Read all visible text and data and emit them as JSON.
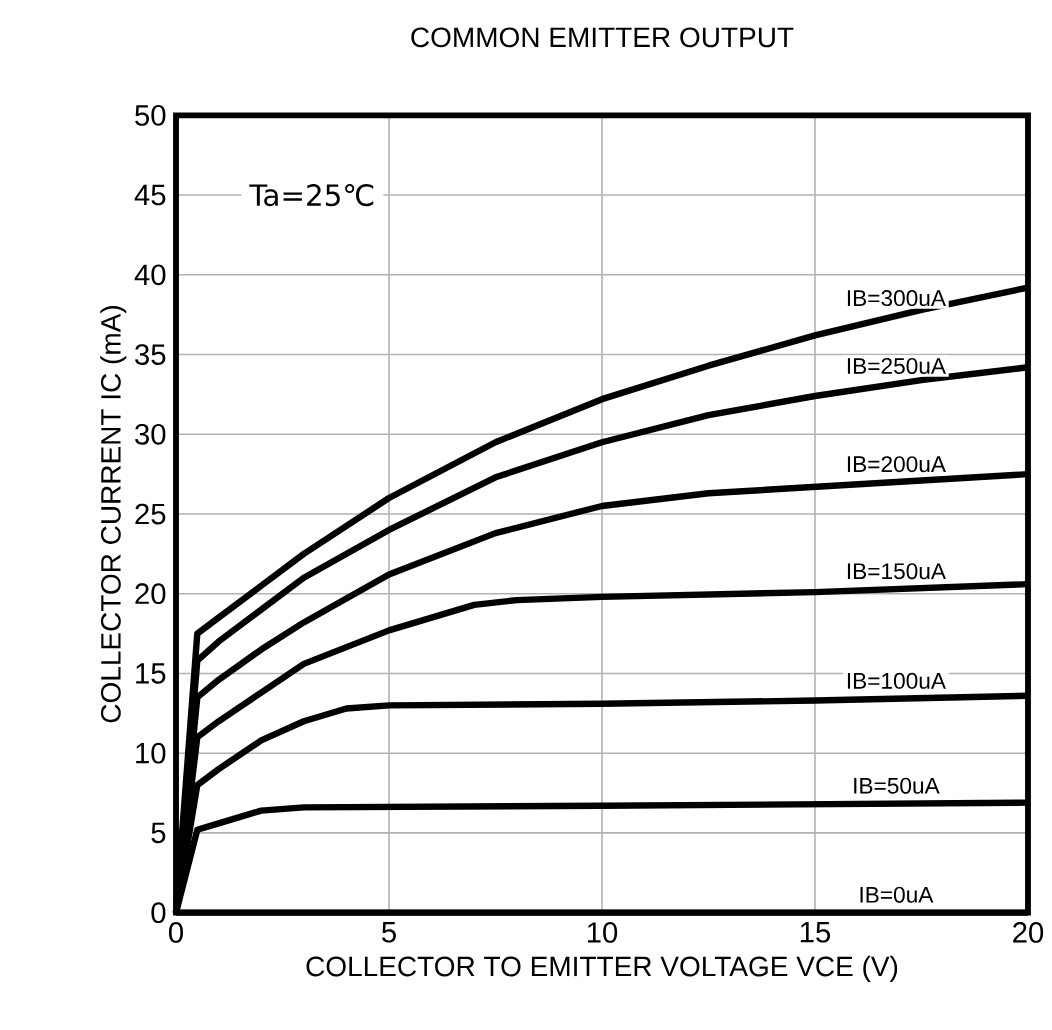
{
  "chart_data": {
    "type": "line",
    "title": "COMMON EMITTER OUTPUT",
    "xlabel": "COLLECTOR TO EMITTER VOLTAGE  VCE (V)",
    "ylabel": "COLLECTOR CURRENT  IC (mA)",
    "annotations": [
      "Ta=25℃"
    ],
    "xlim": [
      0,
      20
    ],
    "ylim": [
      0,
      50
    ],
    "xticks": [
      0,
      5,
      10,
      15,
      20
    ],
    "yticks": [
      0,
      5,
      10,
      15,
      20,
      25,
      30,
      35,
      40,
      45,
      50
    ],
    "grid": true,
    "legend": false,
    "series": [
      {
        "name": "IB=300uA",
        "color": "#000000",
        "x": [
          0,
          0.5,
          1,
          2,
          3,
          5,
          7.5,
          10,
          12.5,
          15,
          17.5,
          20
        ],
        "values": [
          0,
          17.5,
          18.5,
          20.5,
          22.5,
          26,
          29.5,
          32.2,
          34.3,
          36.2,
          37.8,
          39.2
        ]
      },
      {
        "name": "IB=250uA",
        "color": "#000000",
        "x": [
          0,
          0.5,
          1,
          2,
          3,
          5,
          7.5,
          10,
          12.5,
          15,
          17.5,
          20
        ],
        "values": [
          0,
          15.8,
          17,
          19,
          21,
          24,
          27.3,
          29.5,
          31.2,
          32.4,
          33.4,
          34.2
        ]
      },
      {
        "name": "IB=200uA",
        "color": "#000000",
        "x": [
          0,
          0.5,
          1,
          2,
          3,
          5,
          7.5,
          10,
          12.5,
          15,
          17.5,
          20
        ],
        "values": [
          0,
          13.5,
          14.6,
          16.5,
          18.2,
          21.2,
          23.8,
          25.5,
          26.3,
          26.7,
          27.1,
          27.5
        ]
      },
      {
        "name": "IB=150uA",
        "color": "#000000",
        "x": [
          0,
          0.5,
          1,
          2,
          3,
          5,
          7,
          8,
          10,
          15,
          20
        ],
        "values": [
          0,
          11,
          12,
          13.8,
          15.6,
          17.7,
          19.3,
          19.6,
          19.8,
          20.1,
          20.6
        ]
      },
      {
        "name": "IB=100uA",
        "color": "#000000",
        "x": [
          0,
          0.5,
          1,
          2,
          3,
          4,
          5,
          10,
          15,
          20
        ],
        "values": [
          0,
          8,
          9,
          10.8,
          12,
          12.8,
          13,
          13.1,
          13.3,
          13.6
        ]
      },
      {
        "name": "IB=50uA",
        "color": "#000000",
        "x": [
          0,
          0.5,
          1,
          2,
          3,
          10,
          20
        ],
        "values": [
          0,
          5.2,
          5.6,
          6.4,
          6.6,
          6.7,
          6.9
        ]
      },
      {
        "name": "IB=0uA",
        "color": "#000000",
        "x": [
          0,
          20
        ],
        "values": [
          0,
          0
        ]
      }
    ]
  }
}
